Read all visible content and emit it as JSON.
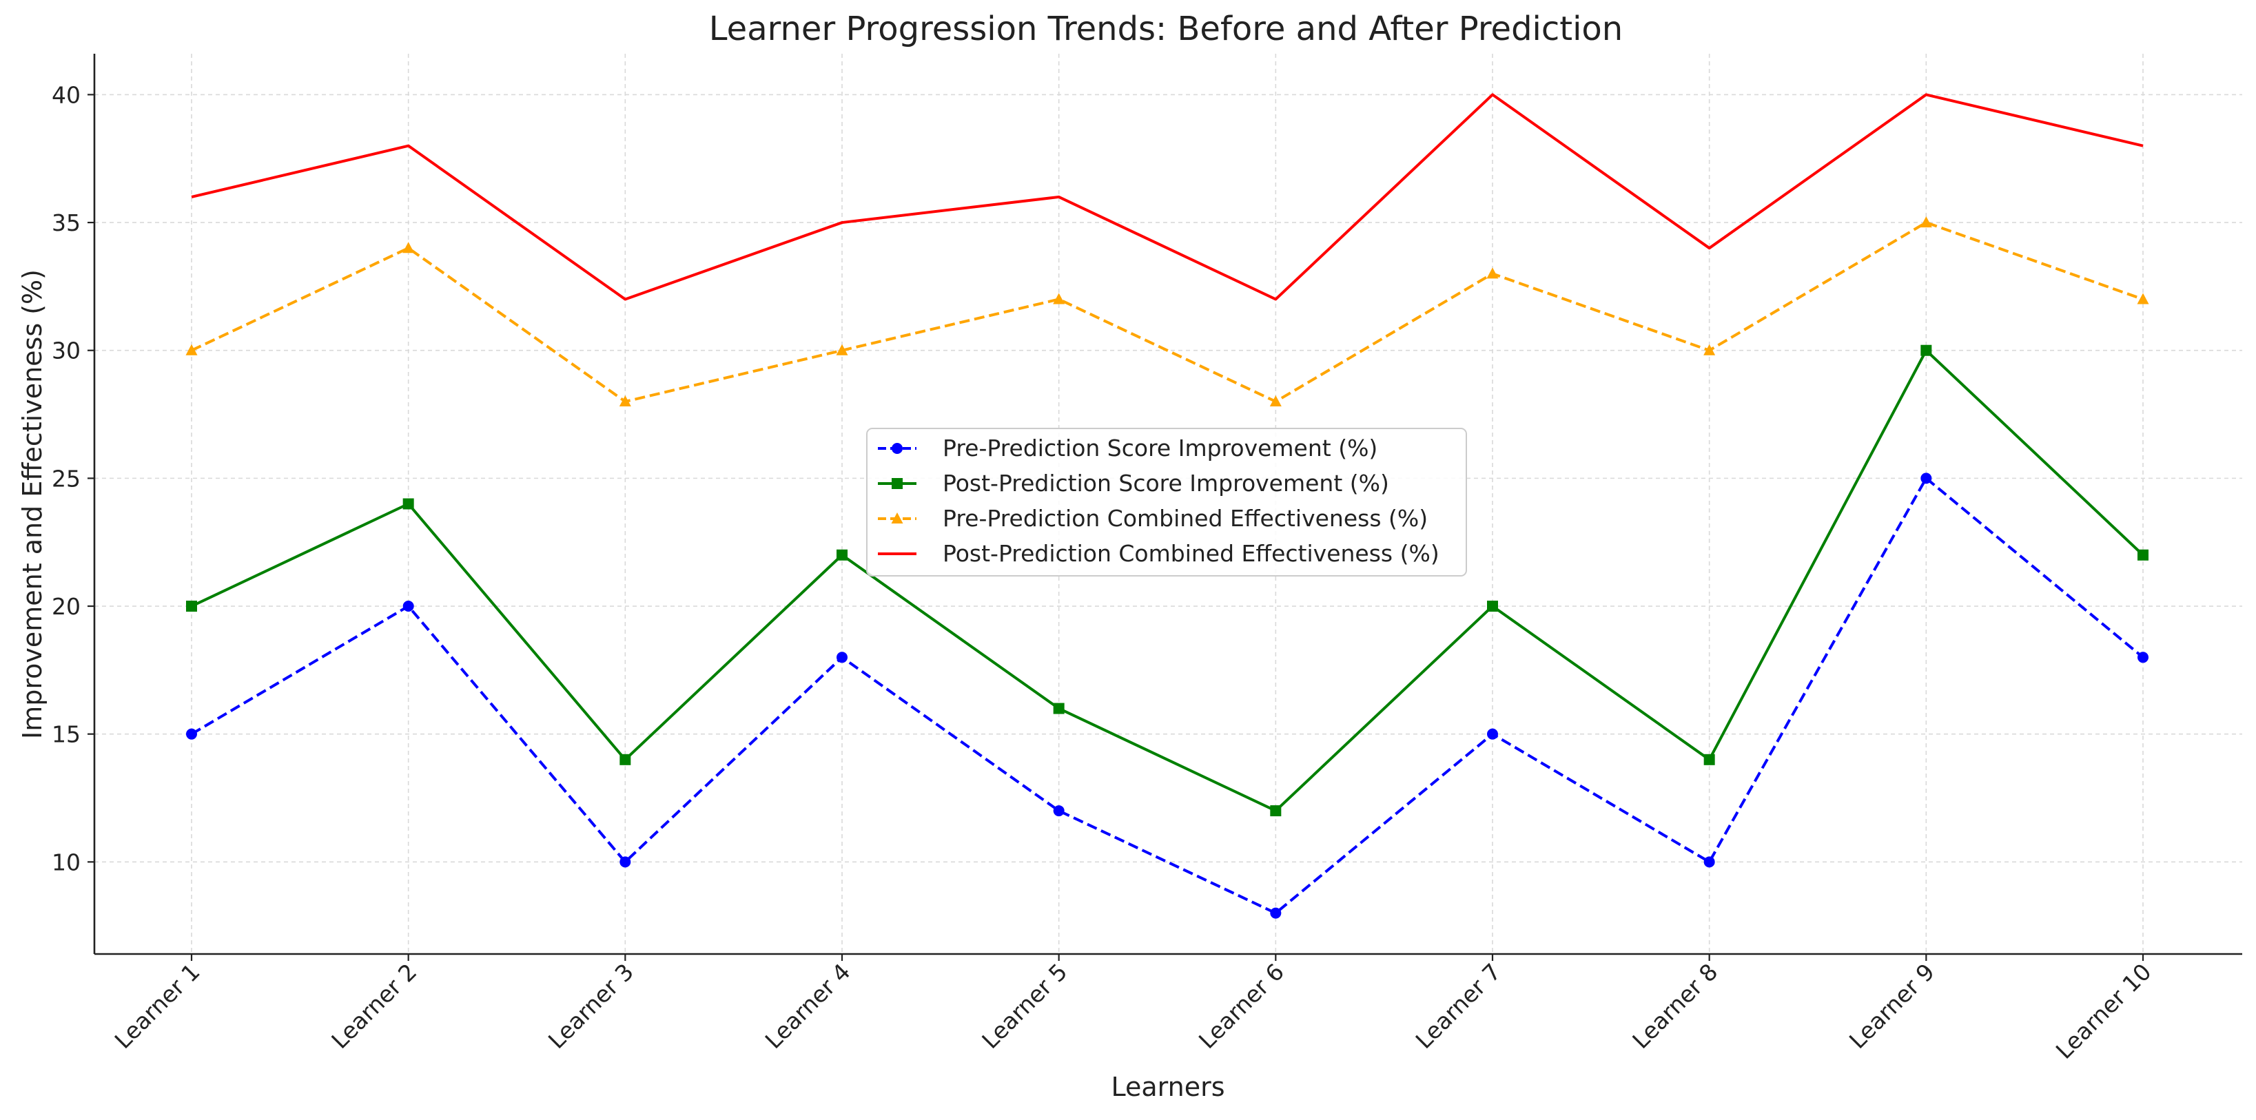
{
  "chart_data": {
    "type": "line",
    "title": "Learner Progression Trends: Before and After Prediction",
    "xlabel": "Learners",
    "ylabel": "Improvement and Effectiveness (%)",
    "categories": [
      "Learner 1",
      "Learner 2",
      "Learner 3",
      "Learner 4",
      "Learner 5",
      "Learner 6",
      "Learner 7",
      "Learner 8",
      "Learner 9",
      "Learner 10"
    ],
    "yticks": [
      10,
      15,
      20,
      25,
      30,
      35,
      40
    ],
    "ylim": [
      6.4,
      41.6
    ],
    "grid": true,
    "legend_position": "center",
    "series": [
      {
        "name": "Pre-Prediction Score Improvement (%)",
        "color": "#0000ff",
        "dash": "dashed",
        "marker": "circle",
        "values": [
          15,
          20,
          10,
          18,
          12,
          8,
          15,
          10,
          25,
          18
        ]
      },
      {
        "name": "Post-Prediction Score Improvement (%)",
        "color": "#008000",
        "dash": "solid",
        "marker": "square",
        "values": [
          20,
          24,
          14,
          22,
          16,
          12,
          20,
          14,
          30,
          22
        ]
      },
      {
        "name": "Pre-Prediction Combined Effectiveness (%)",
        "color": "#ffa500",
        "dash": "dashed",
        "marker": "triangle",
        "values": [
          30,
          34,
          28,
          30,
          32,
          28,
          33,
          30,
          35,
          32
        ]
      },
      {
        "name": "Post-Prediction Combined Effectiveness (%)",
        "color": "#ff0000",
        "dash": "solid",
        "marker": "none",
        "values": [
          36,
          38,
          32,
          35,
          36,
          32,
          40,
          34,
          40,
          38
        ]
      }
    ]
  }
}
